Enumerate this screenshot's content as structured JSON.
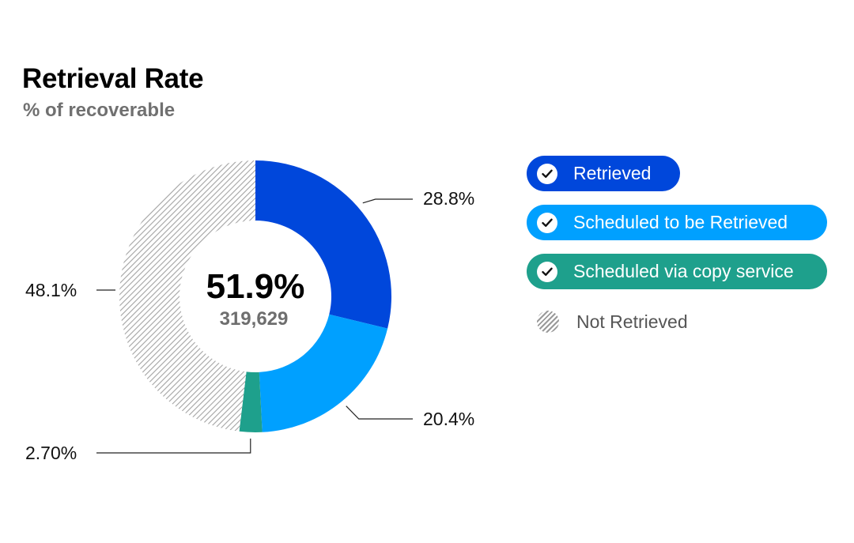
{
  "header": {
    "title": "Retrieval Rate",
    "subtitle": "% of recoverable"
  },
  "center": {
    "value": "51.9%",
    "count": "319,629"
  },
  "legend": {
    "retrieved": "Retrieved",
    "scheduled": "Scheduled to be Retrieved",
    "copy_service": "Scheduled via copy service",
    "not_retrieved": "Not Retrieved"
  },
  "colors": {
    "retrieved": "#0047DB",
    "scheduled": "#00A0FF",
    "copy_service": "#1EA08C",
    "not_retrieved": "#9A9A9A"
  },
  "chart_data": {
    "type": "pie",
    "title": "Retrieval Rate",
    "subtitle": "% of recoverable",
    "categories": [
      "Retrieved",
      "Scheduled to be Retrieved",
      "Scheduled via copy service",
      "Not Retrieved"
    ],
    "values": [
      28.8,
      20.4,
      2.7,
      48.1
    ],
    "labels": [
      "28.8%",
      "20.4%",
      "2.70%",
      "48.1%"
    ],
    "legend_position": "right"
  }
}
